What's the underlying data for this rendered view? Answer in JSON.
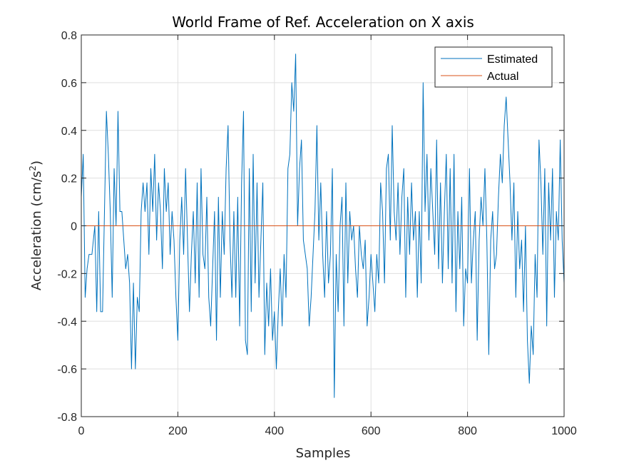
{
  "chart_data": {
    "type": "line",
    "title": "World Frame of Ref. Acceleration on X axis",
    "xlabel": "Samples",
    "ylabel_main": "Acceleration (cm/s",
    "ylabel_sup": "2",
    "ylabel_close": ")",
    "xlim": [
      0,
      1000
    ],
    "ylim": [
      -0.8,
      0.8
    ],
    "xticks": [
      0,
      200,
      400,
      600,
      800,
      1000
    ],
    "xtick_labels": [
      "0",
      "200",
      "400",
      "600",
      "800",
      "1000"
    ],
    "yticks": [
      -0.8,
      -0.6,
      -0.4,
      -0.2,
      0,
      0.2,
      0.4,
      0.6,
      0.8
    ],
    "ytick_labels": [
      "-0.8",
      "-0.6",
      "-0.4",
      "-0.2",
      "0",
      "0.2",
      "0.4",
      "0.6",
      "0.8"
    ],
    "grid": true,
    "legend_position": "top-right",
    "series": [
      {
        "name": "Estimated",
        "color": "#0072BD",
        "points": [
          [
            0,
            0.12
          ],
          [
            4,
            0.3
          ],
          [
            8,
            -0.3
          ],
          [
            12,
            -0.18
          ],
          [
            16,
            -0.12
          ],
          [
            22,
            -0.12
          ],
          [
            28,
            0.0
          ],
          [
            32,
            -0.36
          ],
          [
            36,
            0.06
          ],
          [
            40,
            -0.36
          ],
          [
            44,
            -0.36
          ],
          [
            48,
            0.06
          ],
          [
            52,
            0.48
          ],
          [
            56,
            0.3
          ],
          [
            60,
            0.06
          ],
          [
            64,
            -0.3
          ],
          [
            68,
            0.24
          ],
          [
            72,
            0.0
          ],
          [
            76,
            0.48
          ],
          [
            80,
            0.06
          ],
          [
            84,
            0.06
          ],
          [
            88,
            -0.06
          ],
          [
            92,
            -0.18
          ],
          [
            96,
            -0.12
          ],
          [
            100,
            -0.24
          ],
          [
            104,
            -0.6
          ],
          [
            108,
            -0.24
          ],
          [
            112,
            -0.6
          ],
          [
            116,
            -0.3
          ],
          [
            120,
            -0.36
          ],
          [
            124,
            0.06
          ],
          [
            128,
            0.18
          ],
          [
            132,
            0.06
          ],
          [
            136,
            0.18
          ],
          [
            140,
            -0.12
          ],
          [
            144,
            0.24
          ],
          [
            148,
            0.06
          ],
          [
            152,
            0.3
          ],
          [
            156,
            -0.06
          ],
          [
            160,
            0.18
          ],
          [
            164,
            0.06
          ],
          [
            168,
            -0.18
          ],
          [
            172,
            0.24
          ],
          [
            176,
            0.06
          ],
          [
            180,
            0.18
          ],
          [
            184,
            -0.12
          ],
          [
            188,
            0.06
          ],
          [
            192,
            -0.06
          ],
          [
            196,
            -0.3
          ],
          [
            200,
            -0.48
          ],
          [
            204,
            -0.06
          ],
          [
            208,
            0.12
          ],
          [
            212,
            -0.12
          ],
          [
            216,
            0.24
          ],
          [
            220,
            -0.06
          ],
          [
            224,
            -0.36
          ],
          [
            228,
            -0.12
          ],
          [
            232,
            0.06
          ],
          [
            236,
            -0.24
          ],
          [
            240,
            0.18
          ],
          [
            244,
            -0.3
          ],
          [
            248,
            0.24
          ],
          [
            252,
            -0.12
          ],
          [
            256,
            -0.18
          ],
          [
            260,
            0.12
          ],
          [
            264,
            -0.3
          ],
          [
            268,
            -0.42
          ],
          [
            272,
            -0.18
          ],
          [
            276,
            0.06
          ],
          [
            280,
            -0.48
          ],
          [
            284,
            0.12
          ],
          [
            288,
            -0.3
          ],
          [
            292,
            0.06
          ],
          [
            296,
            -0.12
          ],
          [
            300,
            0.24
          ],
          [
            304,
            0.42
          ],
          [
            308,
            -0.06
          ],
          [
            312,
            -0.3
          ],
          [
            316,
            0.06
          ],
          [
            320,
            -0.3
          ],
          [
            324,
            0.12
          ],
          [
            328,
            -0.42
          ],
          [
            332,
            0.18
          ],
          [
            336,
            0.48
          ],
          [
            340,
            -0.48
          ],
          [
            344,
            -0.54
          ],
          [
            348,
            0.24
          ],
          [
            352,
            -0.36
          ],
          [
            356,
            0.3
          ],
          [
            360,
            -0.24
          ],
          [
            364,
            0.18
          ],
          [
            368,
            -0.3
          ],
          [
            372,
            -0.06
          ],
          [
            376,
            0.18
          ],
          [
            380,
            -0.54
          ],
          [
            384,
            -0.24
          ],
          [
            388,
            -0.42
          ],
          [
            392,
            -0.18
          ],
          [
            396,
            -0.48
          ],
          [
            400,
            -0.36
          ],
          [
            404,
            -0.6
          ],
          [
            408,
            -0.36
          ],
          [
            412,
            -0.18
          ],
          [
            416,
            -0.42
          ],
          [
            420,
            -0.12
          ],
          [
            424,
            -0.3
          ],
          [
            428,
            0.24
          ],
          [
            432,
            0.3
          ],
          [
            436,
            0.6
          ],
          [
            440,
            0.48
          ],
          [
            444,
            0.72
          ],
          [
            448,
            0.0
          ],
          [
            452,
            0.24
          ],
          [
            456,
            0.36
          ],
          [
            460,
            -0.06
          ],
          [
            464,
            -0.12
          ],
          [
            468,
            -0.18
          ],
          [
            472,
            -0.42
          ],
          [
            476,
            -0.3
          ],
          [
            480,
            -0.12
          ],
          [
            484,
            0.06
          ],
          [
            488,
            0.42
          ],
          [
            492,
            -0.06
          ],
          [
            496,
            0.18
          ],
          [
            500,
            -0.12
          ],
          [
            504,
            -0.3
          ],
          [
            508,
            0.06
          ],
          [
            512,
            -0.24
          ],
          [
            516,
            -0.12
          ],
          [
            520,
            0.24
          ],
          [
            524,
            -0.72
          ],
          [
            528,
            -0.12
          ],
          [
            532,
            -0.36
          ],
          [
            536,
            0.0
          ],
          [
            540,
            0.12
          ],
          [
            544,
            -0.42
          ],
          [
            548,
            0.18
          ],
          [
            552,
            -0.24
          ],
          [
            556,
            0.06
          ],
          [
            560,
            -0.06
          ],
          [
            564,
            0.0
          ],
          [
            568,
            -0.18
          ],
          [
            572,
            -0.3
          ],
          [
            576,
            0.0
          ],
          [
            580,
            -0.12
          ],
          [
            584,
            -0.18
          ],
          [
            588,
            -0.06
          ],
          [
            592,
            -0.42
          ],
          [
            596,
            -0.3
          ],
          [
            600,
            -0.12
          ],
          [
            604,
            -0.24
          ],
          [
            608,
            -0.36
          ],
          [
            612,
            -0.12
          ],
          [
            616,
            -0.24
          ],
          [
            620,
            0.18
          ],
          [
            624,
            0.06
          ],
          [
            628,
            -0.24
          ],
          [
            632,
            0.24
          ],
          [
            636,
            0.3
          ],
          [
            640,
            -0.06
          ],
          [
            644,
            0.42
          ],
          [
            648,
            0.06
          ],
          [
            652,
            -0.06
          ],
          [
            656,
            0.18
          ],
          [
            660,
            -0.12
          ],
          [
            664,
            0.12
          ],
          [
            668,
            0.24
          ],
          [
            672,
            -0.3
          ],
          [
            676,
            0.12
          ],
          [
            680,
            -0.12
          ],
          [
            684,
            0.18
          ],
          [
            688,
            -0.06
          ],
          [
            692,
            0.06
          ],
          [
            696,
            -0.3
          ],
          [
            700,
            0.06
          ],
          [
            704,
            -0.24
          ],
          [
            708,
            0.6
          ],
          [
            712,
            0.06
          ],
          [
            716,
            0.3
          ],
          [
            720,
            -0.06
          ],
          [
            724,
            0.24
          ],
          [
            728,
            0.06
          ],
          [
            732,
            -0.12
          ],
          [
            736,
            0.36
          ],
          [
            740,
            -0.18
          ],
          [
            744,
            0.18
          ],
          [
            748,
            -0.24
          ],
          [
            752,
            0.06
          ],
          [
            756,
            0.3
          ],
          [
            760,
            -0.18
          ],
          [
            764,
            0.24
          ],
          [
            768,
            -0.24
          ],
          [
            772,
            0.3
          ],
          [
            776,
            -0.36
          ],
          [
            780,
            0.06
          ],
          [
            784,
            -0.18
          ],
          [
            788,
            0.12
          ],
          [
            792,
            -0.42
          ],
          [
            796,
            -0.18
          ],
          [
            800,
            -0.24
          ],
          [
            804,
            0.24
          ],
          [
            808,
            -0.24
          ],
          [
            812,
            -0.06
          ],
          [
            816,
            0.06
          ],
          [
            820,
            -0.48
          ],
          [
            824,
            -0.06
          ],
          [
            828,
            0.12
          ],
          [
            832,
            0.0
          ],
          [
            836,
            0.24
          ],
          [
            840,
            -0.06
          ],
          [
            844,
            -0.54
          ],
          [
            848,
            -0.06
          ],
          [
            852,
            0.06
          ],
          [
            856,
            -0.18
          ],
          [
            860,
            -0.12
          ],
          [
            864,
            0.12
          ],
          [
            868,
            0.3
          ],
          [
            872,
            0.18
          ],
          [
            876,
            0.42
          ],
          [
            880,
            0.54
          ],
          [
            884,
            0.36
          ],
          [
            888,
            0.18
          ],
          [
            892,
            -0.06
          ],
          [
            896,
            0.18
          ],
          [
            900,
            -0.3
          ],
          [
            904,
            0.06
          ],
          [
            908,
            -0.18
          ],
          [
            912,
            -0.06
          ],
          [
            916,
            -0.36
          ],
          [
            920,
            0.0
          ],
          [
            924,
            -0.48
          ],
          [
            928,
            -0.66
          ],
          [
            932,
            -0.42
          ],
          [
            936,
            -0.54
          ],
          [
            940,
            -0.12
          ],
          [
            944,
            -0.3
          ],
          [
            948,
            0.36
          ],
          [
            952,
            0.18
          ],
          [
            956,
            -0.12
          ],
          [
            960,
            0.24
          ],
          [
            964,
            -0.42
          ],
          [
            968,
            0.18
          ],
          [
            972,
            -0.06
          ],
          [
            976,
            0.24
          ],
          [
            980,
            -0.3
          ],
          [
            984,
            0.06
          ],
          [
            988,
            -0.06
          ],
          [
            992,
            0.36
          ],
          [
            996,
            -0.06
          ],
          [
            1000,
            -0.24
          ]
        ]
      },
      {
        "name": "Actual",
        "color": "#D95319",
        "points": [
          [
            0,
            0
          ],
          [
            1000,
            0
          ]
        ]
      }
    ]
  }
}
